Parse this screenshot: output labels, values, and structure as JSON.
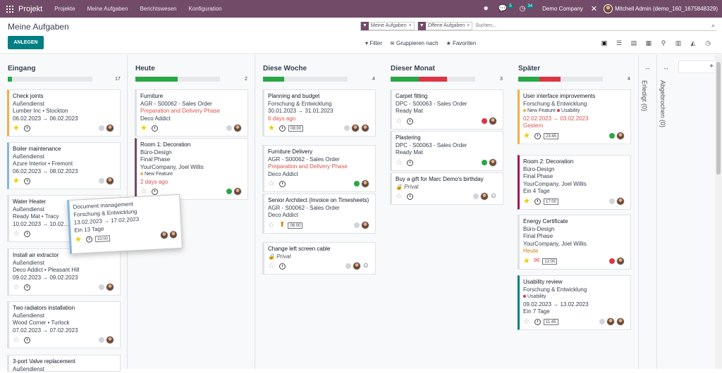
{
  "navbar": {
    "app": "Projekt",
    "menus": [
      "Projekte",
      "Meine Aufgaben",
      "Berichtswesen",
      "Konfiguration"
    ],
    "chat_count": "5",
    "activity_count": "34",
    "company": "Demo Company",
    "user": "Mitchell Admin (demo_160_1675848329)"
  },
  "header": {
    "title": "Meine Aufgaben",
    "create": "ANLEGEN"
  },
  "search": {
    "facets": [
      "Meine Aufgaben",
      "Offene Aufgaben"
    ],
    "placeholder": "Suchen..."
  },
  "filters": {
    "filter": "Filter",
    "group": "Gruppieren nach",
    "fav": "Favoriten"
  },
  "colors": {
    "accent": "#714b67",
    "primary": "#017e84",
    "green": "#28a745",
    "red": "#dc3545"
  },
  "columns": [
    {
      "name": "Eingang",
      "count": "17",
      "progress": {
        "green": 0.05,
        "red": 0
      }
    },
    {
      "name": "Heute",
      "count": "2",
      "progress": {
        "green": 0.5,
        "red": 0
      }
    },
    {
      "name": "Diese Woche",
      "count": "4",
      "progress": {
        "green": 0.25,
        "red": 0
      }
    },
    {
      "name": "Dieser Monat",
      "count": "3",
      "progress": {
        "green": 0.33,
        "red": 0.33
      }
    },
    {
      "name": "Später",
      "count": "4",
      "progress": {
        "green": 0.25,
        "red": 0.25
      }
    }
  ],
  "folded": [
    "Erledigt (0)",
    "Abgebrochen (0)"
  ],
  "c1": [
    {
      "name": "Check joints",
      "l2": "Außendienst",
      "l3": "Lumber Inc • Stockton",
      "l4": "06.02.2023 → 06.02.2023"
    },
    {
      "name": "Boiler maintenance",
      "l2": "Außendienst",
      "l3": "Azure Interior • Fremont",
      "l4": "06.02.2023 → 08.02.2023"
    },
    {
      "name": "Water Heater",
      "l2": "Außendienst",
      "l3": "Ready Mat • Tracy",
      "l4": "10.02.2023 → 10.02..."
    },
    {
      "name": "Install air extractor",
      "l2": "Außendienst",
      "l3": "Deco Addict • Pleasant Hill",
      "l4": "09.02.2023 → 09.02.2023"
    },
    {
      "name": "Two radiators installation",
      "l2": "Außendienst",
      "l3": "Wood Corner • Turlock",
      "l4": "07.02.2023 → 07.02.2023"
    },
    {
      "name": "3-port Valve replacement",
      "l2": "Außendienst"
    }
  ],
  "drag": {
    "name": "Document management",
    "l2": "Forschung & Entwicklung",
    "l3": "13.02.2023 → 17.02.2023",
    "l4": "Ein 13 Tage",
    "time": "10:00"
  },
  "c2": [
    {
      "name": "Furniture",
      "l2": "AGR - S00062 - Sales Order",
      "l3": "Preparation and Delivery Phase",
      "l4": "Deco Addict"
    },
    {
      "name": "Room 1: Decoration",
      "l2": "Büro-Design",
      "l3": "Final Phase",
      "l4": "YourCompany, Joel Willis",
      "tag": "New Feature",
      "due": "2 days ago"
    }
  ],
  "c3": [
    {
      "name": "Planning and budget",
      "l2": "Forschung & Entwicklung",
      "l3": "30.01.2023 → 31.01.2023",
      "due": "6 days ago",
      "time": "08:00"
    },
    {
      "name": "Furniture Delivery",
      "l2": "AGR - S00062 - Sales Order",
      "l3": "Preparation and Delivery Phase",
      "l4": "Deco Addict"
    },
    {
      "name": "Senior Architect (Invoice on Timesheets)",
      "l2": "AGR - S00062 - Sales Order",
      "l3": "Deco Addict",
      "time": "06:00"
    },
    {
      "name": "Change left screen cable",
      "l2": "Privat"
    }
  ],
  "c4": [
    {
      "name": "Carpet fitting",
      "l2": "DPC - S00063 - Sales Order",
      "l3": "Ready Mat"
    },
    {
      "name": "Plastering",
      "l2": "DPC - S00063 - Sales Order",
      "l3": "Ready Mat"
    },
    {
      "name": "Buy a gift for Marc Demo's birthday",
      "l2": "Privat"
    }
  ],
  "c5": [
    {
      "name": "User interface improvements",
      "l2": "Forschung & Entwicklung",
      "tag1": "New Feature",
      "tag2": "Usability",
      "l3": "02.02.2023 → 03.02.2023",
      "due": "Gestern",
      "time": "23:45"
    },
    {
      "name": "Room 2: Decoration",
      "l2": "Büro-Design",
      "l3": "Final Phase",
      "l4": "YourCompany, Joel Willis",
      "l5": "Ein 4 Tage",
      "time": "17:00"
    },
    {
      "name": "Energy Certificate",
      "l2": "Büro-Design",
      "l3": "Final Phase",
      "l4": "YourCompany, Joel Willis",
      "due": "Heute",
      "time": "12:00"
    },
    {
      "name": "Usability review",
      "l2": "Forschung & Entwicklung",
      "tag": "Usability",
      "l3": "09.02.2023 → 13.02.2023",
      "l4": "Ein 7 Tage",
      "time": "11:45"
    }
  ]
}
